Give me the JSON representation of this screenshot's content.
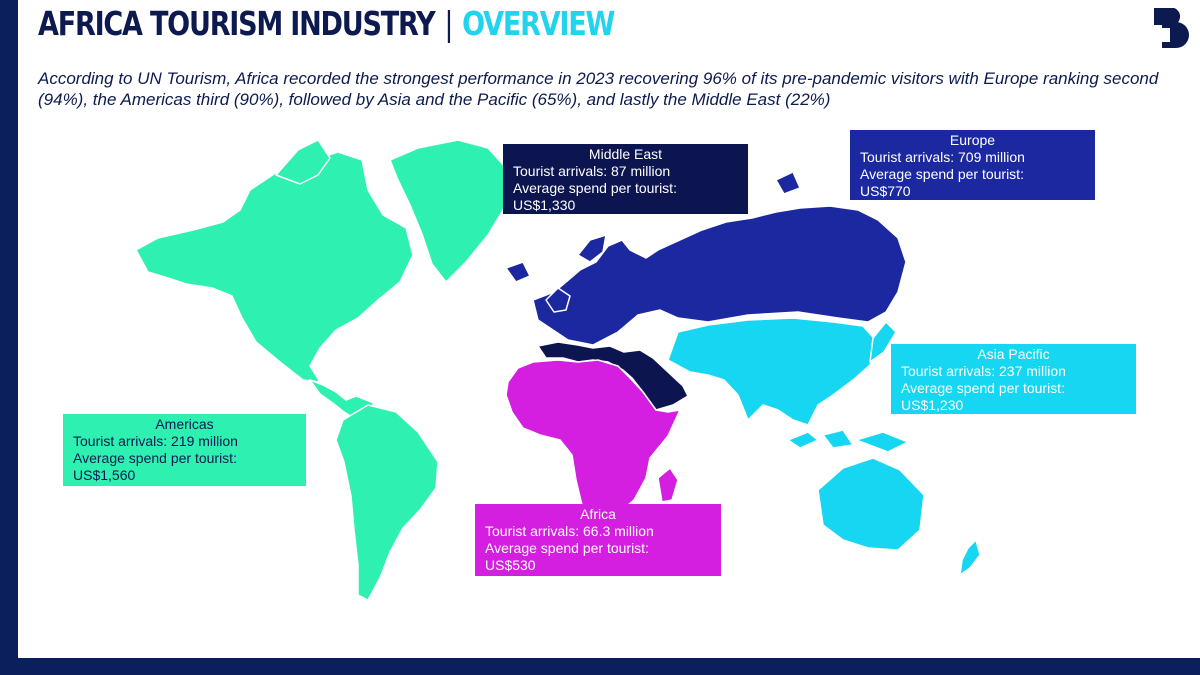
{
  "header": {
    "title": "AFRICA TOURISM INDUSTRY",
    "separator": "|",
    "section": "OVERVIEW",
    "subtitle": "According to UN Tourism, Africa recorded the strongest performance in 2023 recovering 96% of its pre-pandemic visitors with Europe ranking second (94%), the Americas third (90%), followed by Asia and the Pacific (65%), and lastly the Middle East (22%)"
  },
  "logo": {
    "icon": "b-logo-icon",
    "color": "#0d1a4f"
  },
  "regions": {
    "americas": {
      "name": "Americas",
      "arrivals": "Tourist arrivals: 219 million",
      "spend_label": "Average spend per tourist:",
      "spend": "US$1,560",
      "color": "#2ef0b0"
    },
    "europe": {
      "name": "Europe",
      "arrivals": "Tourist arrivals: 709 million",
      "spend_label": "Average spend per tourist:",
      "spend": "US$770",
      "color": "#1b28a0"
    },
    "middle_east": {
      "name": "Middle East",
      "arrivals": "Tourist arrivals: 87 million",
      "spend_label": "Average spend per tourist:",
      "spend": "US$1,330",
      "color": "#0d1550"
    },
    "africa": {
      "name": "Africa",
      "arrivals": "Tourist arrivals: 66.3 million",
      "spend_label": "Average spend per tourist:",
      "spend": "US$530",
      "color": "#d41ee0"
    },
    "asia_pacific": {
      "name": "Asia Pacific",
      "arrivals": "Tourist arrivals: 237 million",
      "spend_label": "Average spend per tourist:",
      "spend": "US$1,230",
      "color": "#16d6f2"
    }
  },
  "colors": {
    "frame": "#0b1f5c",
    "title_dark": "#0d1a4f",
    "title_accent": "#22d3ee"
  }
}
